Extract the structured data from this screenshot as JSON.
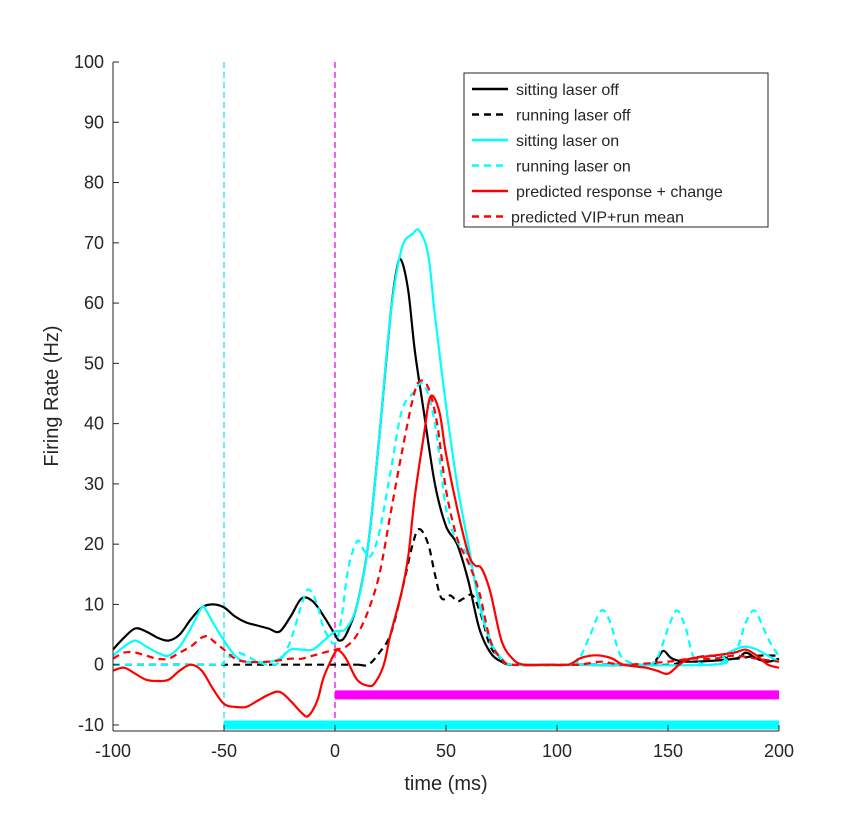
{
  "chart_data": {
    "type": "line",
    "xlabel": "time (ms)",
    "ylabel": "Firing Rate (Hz)",
    "xlim": [
      -100,
      200
    ],
    "ylim": [
      -11,
      100
    ],
    "xticks": [
      -100,
      -50,
      0,
      50,
      100,
      150,
      200
    ],
    "yticks": [
      -10,
      0,
      10,
      20,
      30,
      40,
      50,
      60,
      70,
      80,
      90,
      100
    ],
    "legend_position": "top-right",
    "vertical_lines": [
      {
        "x": -50,
        "color": "#00e5e5",
        "style": "dashed"
      },
      {
        "x": 0,
        "color": "#e000e0",
        "style": "dashed"
      }
    ],
    "bars": [
      {
        "x_start": 0,
        "x_end": 200,
        "y": -5,
        "color": "#ff00ff"
      },
      {
        "x_start": -50,
        "x_end": 200,
        "y": -10,
        "color": "#00ffff"
      }
    ],
    "series": [
      {
        "name": "sitting laser off",
        "color": "#000000",
        "style": "solid",
        "points": [
          [
            -100,
            2.5
          ],
          [
            -95,
            4.5
          ],
          [
            -90,
            6
          ],
          [
            -85,
            5.5
          ],
          [
            -80,
            4.5
          ],
          [
            -75,
            4
          ],
          [
            -70,
            5
          ],
          [
            -65,
            7.5
          ],
          [
            -60,
            9.5
          ],
          [
            -55,
            10
          ],
          [
            -50,
            9.5
          ],
          [
            -45,
            8
          ],
          [
            -40,
            7
          ],
          [
            -35,
            6.5
          ],
          [
            -30,
            6
          ],
          [
            -25,
            5.5
          ],
          [
            -20,
            8
          ],
          [
            -15,
            11
          ],
          [
            -10,
            10.5
          ],
          [
            -5,
            8
          ],
          [
            0,
            5
          ],
          [
            2,
            4
          ],
          [
            5,
            5
          ],
          [
            10,
            10
          ],
          [
            15,
            20
          ],
          [
            20,
            38
          ],
          [
            25,
            58
          ],
          [
            28,
            66
          ],
          [
            30,
            67
          ],
          [
            33,
            62
          ],
          [
            36,
            52
          ],
          [
            40,
            42
          ],
          [
            45,
            30
          ],
          [
            50,
            23
          ],
          [
            55,
            20
          ],
          [
            60,
            14
          ],
          [
            65,
            6
          ],
          [
            70,
            2
          ],
          [
            75,
            0.5
          ],
          [
            80,
            0
          ],
          [
            100,
            0
          ],
          [
            140,
            0
          ],
          [
            145,
            1
          ],
          [
            148,
            2.3
          ],
          [
            152,
            1
          ],
          [
            160,
            0.5
          ],
          [
            180,
            1
          ],
          [
            185,
            2
          ],
          [
            190,
            1
          ],
          [
            195,
            0.5
          ],
          [
            200,
            1
          ]
        ]
      },
      {
        "name": "running laser off",
        "color": "#000000",
        "style": "dashed",
        "points": [
          [
            -100,
            0
          ],
          [
            0,
            0
          ],
          [
            10,
            0
          ],
          [
            15,
            0
          ],
          [
            20,
            2
          ],
          [
            25,
            5
          ],
          [
            30,
            12
          ],
          [
            35,
            20
          ],
          [
            38,
            22.5
          ],
          [
            42,
            20
          ],
          [
            45,
            15
          ],
          [
            48,
            11
          ],
          [
            52,
            11.5
          ],
          [
            55,
            10.5
          ],
          [
            58,
            11
          ],
          [
            62,
            11.5
          ],
          [
            66,
            8
          ],
          [
            70,
            3
          ],
          [
            75,
            1
          ],
          [
            80,
            0
          ],
          [
            120,
            0
          ],
          [
            150,
            0
          ],
          [
            160,
            1
          ],
          [
            170,
            1.5
          ],
          [
            180,
            1
          ],
          [
            190,
            1.5
          ],
          [
            200,
            1.5
          ]
        ]
      },
      {
        "name": "sitting laser on",
        "color": "#00ffff",
        "style": "solid",
        "points": [
          [
            -100,
            1.5
          ],
          [
            -95,
            3
          ],
          [
            -90,
            4
          ],
          [
            -85,
            3
          ],
          [
            -80,
            2
          ],
          [
            -75,
            1.5
          ],
          [
            -70,
            3
          ],
          [
            -65,
            6
          ],
          [
            -60,
            9.5
          ],
          [
            -58,
            9
          ],
          [
            -55,
            7
          ],
          [
            -50,
            4
          ],
          [
            -45,
            1.5
          ],
          [
            -40,
            0.5
          ],
          [
            -30,
            0.5
          ],
          [
            -25,
            1
          ],
          [
            -20,
            2.5
          ],
          [
            -15,
            2.5
          ],
          [
            -10,
            2.5
          ],
          [
            -5,
            4
          ],
          [
            0,
            5.5
          ],
          [
            5,
            6
          ],
          [
            10,
            10
          ],
          [
            15,
            20
          ],
          [
            20,
            38
          ],
          [
            25,
            58
          ],
          [
            30,
            69
          ],
          [
            35,
            71.5
          ],
          [
            38,
            72
          ],
          [
            42,
            68
          ],
          [
            45,
            58
          ],
          [
            50,
            43
          ],
          [
            55,
            30
          ],
          [
            60,
            20
          ],
          [
            65,
            10
          ],
          [
            70,
            4
          ],
          [
            75,
            1
          ],
          [
            80,
            0
          ],
          [
            100,
            0
          ],
          [
            170,
            0
          ],
          [
            175,
            1.5
          ],
          [
            180,
            2.5
          ],
          [
            185,
            3
          ],
          [
            190,
            2.5
          ],
          [
            195,
            1.5
          ],
          [
            200,
            0.5
          ]
        ]
      },
      {
        "name": "running laser on",
        "color": "#00ffff",
        "style": "dashed",
        "points": [
          [
            -100,
            0
          ],
          [
            -55,
            0
          ],
          [
            -50,
            0.5
          ],
          [
            -45,
            2
          ],
          [
            -40,
            1.5
          ],
          [
            -35,
            0.5
          ],
          [
            -30,
            0
          ],
          [
            -25,
            0.5
          ],
          [
            -20,
            4
          ],
          [
            -15,
            10
          ],
          [
            -12,
            12.5
          ],
          [
            -8,
            10
          ],
          [
            -5,
            6
          ],
          [
            0,
            3.5
          ],
          [
            3,
            8
          ],
          [
            6,
            16
          ],
          [
            10,
            20.5
          ],
          [
            13,
            19
          ],
          [
            16,
            18
          ],
          [
            20,
            22
          ],
          [
            25,
            32
          ],
          [
            30,
            42
          ],
          [
            35,
            45
          ],
          [
            40,
            46.5
          ],
          [
            45,
            40
          ],
          [
            50,
            26
          ],
          [
            55,
            20.5
          ],
          [
            60,
            18
          ],
          [
            65,
            11
          ],
          [
            70,
            3.5
          ],
          [
            75,
            1
          ],
          [
            80,
            0
          ],
          [
            105,
            0
          ],
          [
            110,
            1
          ],
          [
            115,
            5
          ],
          [
            120,
            9
          ],
          [
            124,
            7
          ],
          [
            128,
            2
          ],
          [
            132,
            0.5
          ],
          [
            140,
            0
          ],
          [
            145,
            1
          ],
          [
            150,
            6
          ],
          [
            154,
            9
          ],
          [
            158,
            6
          ],
          [
            162,
            1
          ],
          [
            170,
            0
          ],
          [
            180,
            2
          ],
          [
            185,
            7
          ],
          [
            189,
            9
          ],
          [
            193,
            6
          ],
          [
            197,
            3
          ],
          [
            200,
            1.5
          ]
        ]
      },
      {
        "name": "predicted response + change",
        "color": "#ff0000",
        "style": "solid",
        "points": [
          [
            -100,
            -1
          ],
          [
            -95,
            -0.5
          ],
          [
            -90,
            -1.5
          ],
          [
            -85,
            -2.5
          ],
          [
            -80,
            -2.7
          ],
          [
            -75,
            -2.5
          ],
          [
            -70,
            -1
          ],
          [
            -65,
            0
          ],
          [
            -60,
            -1
          ],
          [
            -55,
            -4
          ],
          [
            -50,
            -6.5
          ],
          [
            -45,
            -7
          ],
          [
            -40,
            -7
          ],
          [
            -35,
            -6
          ],
          [
            -30,
            -5
          ],
          [
            -25,
            -4.5
          ],
          [
            -20,
            -6
          ],
          [
            -15,
            -8
          ],
          [
            -12,
            -8.5
          ],
          [
            -8,
            -6
          ],
          [
            -5,
            -2
          ],
          [
            0,
            2
          ],
          [
            2,
            2.3
          ],
          [
            5,
            1
          ],
          [
            10,
            -2.5
          ],
          [
            15,
            -3.5
          ],
          [
            18,
            -3
          ],
          [
            22,
            0
          ],
          [
            25,
            5
          ],
          [
            30,
            12
          ],
          [
            33,
            18
          ],
          [
            36,
            28
          ],
          [
            40,
            38
          ],
          [
            43,
            44.5
          ],
          [
            47,
            42
          ],
          [
            50,
            35
          ],
          [
            55,
            26
          ],
          [
            60,
            18.5
          ],
          [
            63,
            16.5
          ],
          [
            66,
            16
          ],
          [
            70,
            12
          ],
          [
            75,
            4
          ],
          [
            80,
            1
          ],
          [
            85,
            0
          ],
          [
            95,
            0
          ],
          [
            105,
            0
          ],
          [
            110,
            1
          ],
          [
            115,
            1.5
          ],
          [
            120,
            1.5
          ],
          [
            125,
            1
          ],
          [
            130,
            0
          ],
          [
            140,
            -0.5
          ],
          [
            145,
            -1
          ],
          [
            150,
            -1.5
          ],
          [
            155,
            0
          ],
          [
            160,
            1
          ],
          [
            170,
            1.5
          ],
          [
            180,
            2
          ],
          [
            185,
            2.5
          ],
          [
            190,
            1.5
          ],
          [
            195,
            0
          ],
          [
            200,
            -0.5
          ]
        ]
      },
      {
        "name": "predicted VIP+run mean",
        "color": "#ff0000",
        "style": "dashed",
        "points": [
          [
            -100,
            1
          ],
          [
            -95,
            2
          ],
          [
            -90,
            2
          ],
          [
            -85,
            1.5
          ],
          [
            -80,
            1
          ],
          [
            -75,
            1
          ],
          [
            -70,
            2
          ],
          [
            -65,
            3
          ],
          [
            -60,
            4.5
          ],
          [
            -57,
            4.7
          ],
          [
            -55,
            4
          ],
          [
            -50,
            2.5
          ],
          [
            -45,
            1
          ],
          [
            -40,
            0.5
          ],
          [
            -30,
            0.5
          ],
          [
            -20,
            1
          ],
          [
            -15,
            1
          ],
          [
            -10,
            1.5
          ],
          [
            -5,
            2
          ],
          [
            0,
            2.5
          ],
          [
            5,
            3
          ],
          [
            10,
            5
          ],
          [
            15,
            9
          ],
          [
            20,
            15
          ],
          [
            25,
            25
          ],
          [
            30,
            35
          ],
          [
            35,
            44
          ],
          [
            38,
            47
          ],
          [
            42,
            46
          ],
          [
            46,
            40
          ],
          [
            50,
            29
          ],
          [
            55,
            21
          ],
          [
            60,
            17
          ],
          [
            65,
            12
          ],
          [
            70,
            4
          ],
          [
            75,
            1
          ],
          [
            80,
            0
          ],
          [
            100,
            0
          ],
          [
            110,
            0
          ],
          [
            120,
            0.5
          ],
          [
            130,
            0
          ],
          [
            150,
            0.5
          ],
          [
            160,
            1
          ],
          [
            170,
            1
          ],
          [
            180,
            1.5
          ],
          [
            190,
            1
          ],
          [
            200,
            0.5
          ]
        ]
      }
    ]
  }
}
